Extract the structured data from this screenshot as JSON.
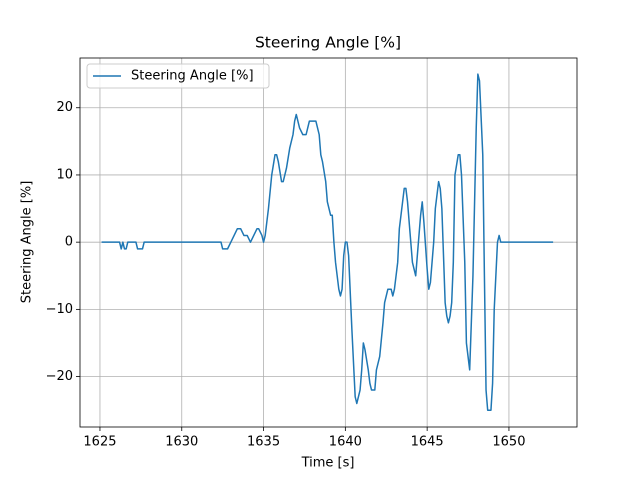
{
  "chart_data": {
    "type": "line",
    "title": "Steering Angle [%]",
    "xlabel": "Time [s]",
    "ylabel": "Steering Angle [%]",
    "x": [
      1625.1,
      1626.2,
      1626.3,
      1626.4,
      1626.5,
      1626.6,
      1626.7,
      1627.2,
      1627.3,
      1627.6,
      1627.7,
      1632.4,
      1632.5,
      1632.8,
      1633.0,
      1633.2,
      1633.4,
      1633.6,
      1633.8,
      1634.0,
      1634.2,
      1634.4,
      1634.6,
      1634.7,
      1634.9,
      1635.0,
      1635.1,
      1635.3,
      1635.5,
      1635.7,
      1635.8,
      1635.9,
      1636.1,
      1636.2,
      1636.4,
      1636.6,
      1636.8,
      1636.9,
      1637.0,
      1637.2,
      1637.4,
      1637.6,
      1637.8,
      1638.2,
      1638.4,
      1638.5,
      1638.6,
      1638.8,
      1638.9,
      1639.1,
      1639.2,
      1639.3,
      1639.4,
      1639.6,
      1639.7,
      1639.8,
      1639.9,
      1640.0,
      1640.1,
      1640.2,
      1640.4,
      1640.6,
      1640.7,
      1640.9,
      1641.0,
      1641.1,
      1641.2,
      1641.4,
      1641.5,
      1641.6,
      1641.8,
      1641.9,
      1642.1,
      1642.3,
      1642.4,
      1642.6,
      1642.8,
      1642.9,
      1643.0,
      1643.2,
      1643.3,
      1643.5,
      1643.6,
      1643.7,
      1643.8,
      1644.0,
      1644.1,
      1644.3,
      1644.4,
      1644.6,
      1644.7,
      1644.8,
      1645.0,
      1645.1,
      1645.2,
      1645.4,
      1645.5,
      1645.7,
      1645.8,
      1645.9,
      1646.1,
      1646.2,
      1646.3,
      1646.4,
      1646.5,
      1646.6,
      1646.7,
      1646.9,
      1647.0,
      1647.1,
      1647.3,
      1647.4,
      1647.6,
      1647.7,
      1647.8,
      1648.0,
      1648.1,
      1648.2,
      1648.4,
      1648.5,
      1648.6,
      1648.7,
      1648.9,
      1649.0,
      1649.1,
      1649.3,
      1649.4,
      1649.5,
      1652.7
    ],
    "series": [
      {
        "name": "Steering Angle [%]",
        "color": "#1f77b4",
        "values": [
          0,
          0,
          -1,
          0,
          -1,
          -1,
          0,
          0,
          -1,
          -1,
          0,
          0,
          -1,
          -1,
          0,
          1,
          2,
          2,
          1,
          1,
          0,
          1,
          2,
          2,
          1,
          0,
          1,
          5,
          10,
          13,
          13,
          12,
          9,
          9,
          11,
          14,
          16,
          18,
          19,
          17,
          16,
          16,
          18,
          18,
          16,
          13,
          12,
          9,
          6,
          4,
          4,
          0,
          -3,
          -7,
          -8,
          -7,
          -2,
          0,
          0,
          -2,
          -13,
          -23,
          -24,
          -22,
          -19,
          -15,
          -16,
          -19,
          -21,
          -22,
          -22,
          -19,
          -17,
          -12,
          -9,
          -7,
          -7,
          -8,
          -7,
          -3,
          2,
          6,
          8,
          8,
          6,
          0,
          -3,
          -5,
          -2,
          4,
          6,
          3,
          -4,
          -7,
          -6,
          0,
          5,
          9,
          8,
          5,
          -9,
          -11,
          -12,
          -11,
          -9,
          -3,
          10,
          13,
          13,
          10,
          -3,
          -15,
          -19,
          -12,
          -5,
          17,
          25,
          24,
          13,
          -5,
          -22,
          -25,
          -25,
          -21,
          -10,
          0,
          1,
          0,
          0
        ]
      }
    ],
    "xlim": [
      1623.78,
      1654.16
    ],
    "ylim": [
      -27.5,
      27.4
    ],
    "xticks": [
      1625,
      1630,
      1635,
      1640,
      1645,
      1650
    ],
    "yticks": [
      {
        "value": -20,
        "label": "−20"
      },
      {
        "value": -10,
        "label": "−10"
      },
      0,
      10,
      20
    ],
    "grid": true,
    "legend": "upper left"
  }
}
